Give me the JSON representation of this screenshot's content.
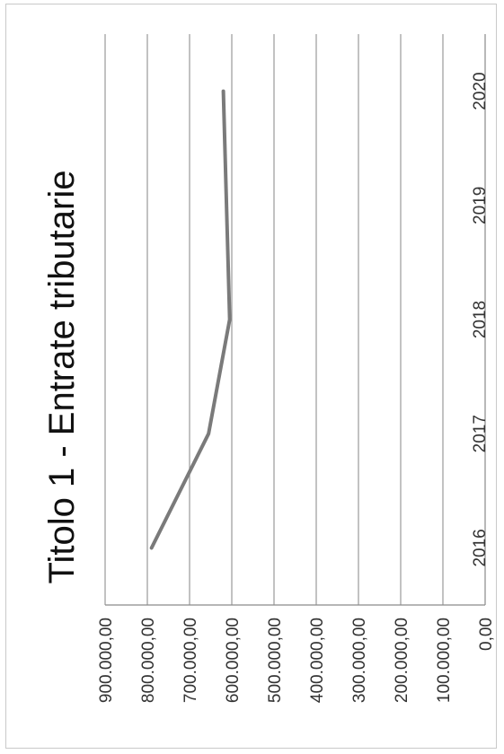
{
  "chart_data": {
    "type": "line",
    "title": "Titolo 1 - Entrate tributarie",
    "xlabel": "",
    "ylabel": "",
    "categories": [
      "2016",
      "2017",
      "2018",
      "2019",
      "2020"
    ],
    "series": [
      {
        "values": [
          790000,
          655000,
          605000,
          null,
          620000
        ],
        "color": "#7a7a7a"
      }
    ],
    "ylim": [
      0,
      900000
    ],
    "yticks": [
      0,
      100000,
      200000,
      300000,
      400000,
      500000,
      600000,
      700000,
      800000,
      900000
    ],
    "ytick_labels": [
      "0,00",
      "100.000,00",
      "200.000,00",
      "300.000,00",
      "400.000,00",
      "500.000,00",
      "600.000,00",
      "700.000,00",
      "800.000,00",
      "900.000,00"
    ],
    "grid": true,
    "orientation": "rotated-90-counterclockwise"
  }
}
